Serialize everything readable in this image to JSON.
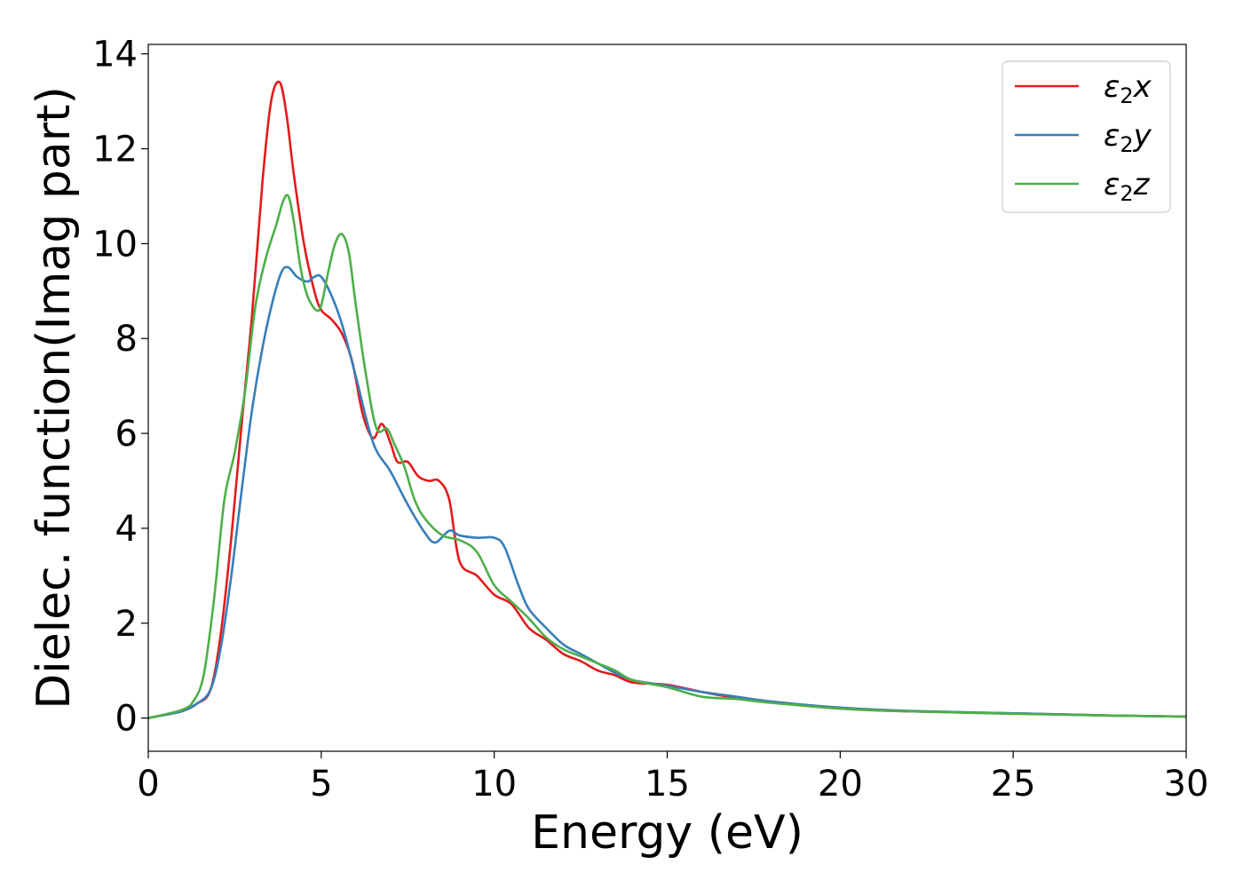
{
  "chart_data": {
    "type": "line",
    "title": "",
    "xlabel": "Energy (eV)",
    "ylabel": "Dielec. function(Imag part)",
    "xlim": [
      0,
      30
    ],
    "ylim": [
      -0.7,
      14.2
    ],
    "xticks": [
      0,
      5,
      10,
      15,
      20,
      25,
      30
    ],
    "yticks": [
      0,
      2,
      4,
      6,
      8,
      10,
      12,
      14
    ],
    "grid": false,
    "legend_position": "top-right",
    "series": [
      {
        "name": "ε₂x",
        "legend_main": "ε",
        "legend_sub": "2",
        "legend_tail": "x",
        "color": "#e41a1c",
        "x": [
          0,
          0.5,
          1.0,
          1.4,
          1.8,
          2.1,
          2.4,
          2.7,
          3.0,
          3.3,
          3.55,
          3.8,
          4.0,
          4.2,
          4.5,
          4.8,
          5.0,
          5.3,
          5.6,
          5.9,
          6.2,
          6.5,
          6.75,
          7.0,
          7.2,
          7.5,
          7.8,
          8.1,
          8.4,
          8.7,
          9.0,
          9.5,
          10.0,
          10.5,
          11.0,
          11.5,
          12.0,
          12.5,
          13.0,
          13.5,
          14.0,
          15.0,
          16.0,
          17.0,
          18.0,
          20.0,
          22.0,
          25.0,
          28.0,
          30.0
        ],
        "y": [
          0,
          0.07,
          0.15,
          0.3,
          0.6,
          1.8,
          3.8,
          6.2,
          8.5,
          11.3,
          13.0,
          13.4,
          12.7,
          11.5,
          10.0,
          9.0,
          8.6,
          8.4,
          8.1,
          7.5,
          6.4,
          5.9,
          6.2,
          5.8,
          5.4,
          5.4,
          5.1,
          5.0,
          5.0,
          4.6,
          3.3,
          3.0,
          2.6,
          2.4,
          1.9,
          1.65,
          1.35,
          1.2,
          1.0,
          0.9,
          0.75,
          0.7,
          0.55,
          0.42,
          0.33,
          0.2,
          0.14,
          0.1,
          0.05,
          0.03
        ]
      },
      {
        "name": "ε₂y",
        "legend_main": "ε",
        "legend_sub": "2",
        "legend_tail": "y",
        "color": "#377eb8",
        "x": [
          0,
          0.5,
          1.0,
          1.4,
          1.8,
          2.1,
          2.4,
          2.7,
          3.0,
          3.3,
          3.6,
          3.85,
          4.05,
          4.3,
          4.6,
          4.8,
          5.0,
          5.3,
          5.6,
          6.0,
          6.5,
          7.0,
          7.5,
          8.0,
          8.3,
          8.7,
          9.0,
          9.5,
          10.0,
          10.3,
          10.7,
          11.0,
          11.5,
          12.0,
          12.5,
          13.0,
          13.5,
          14.0,
          15.0,
          16.0,
          17.0,
          18.0,
          20.0,
          22.0,
          25.0,
          28.0,
          30.0
        ],
        "y": [
          0,
          0.07,
          0.15,
          0.3,
          0.6,
          1.5,
          3.0,
          4.8,
          6.5,
          7.8,
          8.8,
          9.4,
          9.5,
          9.3,
          9.2,
          9.3,
          9.3,
          8.9,
          8.3,
          7.2,
          5.8,
          5.2,
          4.5,
          3.9,
          3.7,
          3.95,
          3.85,
          3.8,
          3.8,
          3.6,
          2.8,
          2.3,
          1.9,
          1.55,
          1.35,
          1.15,
          0.95,
          0.8,
          0.68,
          0.55,
          0.45,
          0.35,
          0.22,
          0.15,
          0.1,
          0.05,
          0.03
        ]
      },
      {
        "name": "ε₂z",
        "legend_main": "ε",
        "legend_sub": "2",
        "legend_tail": "z",
        "color": "#4daf4a",
        "x": [
          0,
          0.5,
          1.0,
          1.3,
          1.6,
          1.9,
          2.2,
          2.5,
          2.8,
          3.1,
          3.4,
          3.7,
          3.9,
          4.05,
          4.2,
          4.4,
          4.6,
          4.85,
          5.0,
          5.2,
          5.4,
          5.6,
          5.8,
          6.0,
          6.3,
          6.6,
          6.9,
          7.1,
          7.4,
          7.7,
          8.0,
          8.5,
          9.0,
          9.5,
          10.0,
          10.5,
          11.0,
          11.5,
          12.0,
          12.5,
          13.0,
          13.5,
          14.0,
          15.0,
          16.0,
          17.0,
          18.0,
          20.0,
          22.0,
          25.0,
          28.0,
          30.0
        ],
        "y": [
          0,
          0.08,
          0.18,
          0.35,
          0.9,
          2.5,
          4.6,
          5.6,
          6.9,
          8.7,
          9.7,
          10.4,
          10.9,
          11.0,
          10.5,
          9.5,
          8.9,
          8.6,
          8.7,
          9.4,
          10.0,
          10.2,
          9.8,
          8.7,
          7.2,
          6.1,
          6.1,
          5.8,
          5.3,
          4.6,
          4.2,
          3.85,
          3.75,
          3.5,
          2.8,
          2.45,
          2.1,
          1.7,
          1.45,
          1.3,
          1.15,
          1.0,
          0.8,
          0.65,
          0.45,
          0.4,
          0.32,
          0.2,
          0.14,
          0.09,
          0.05,
          0.03
        ]
      }
    ]
  }
}
